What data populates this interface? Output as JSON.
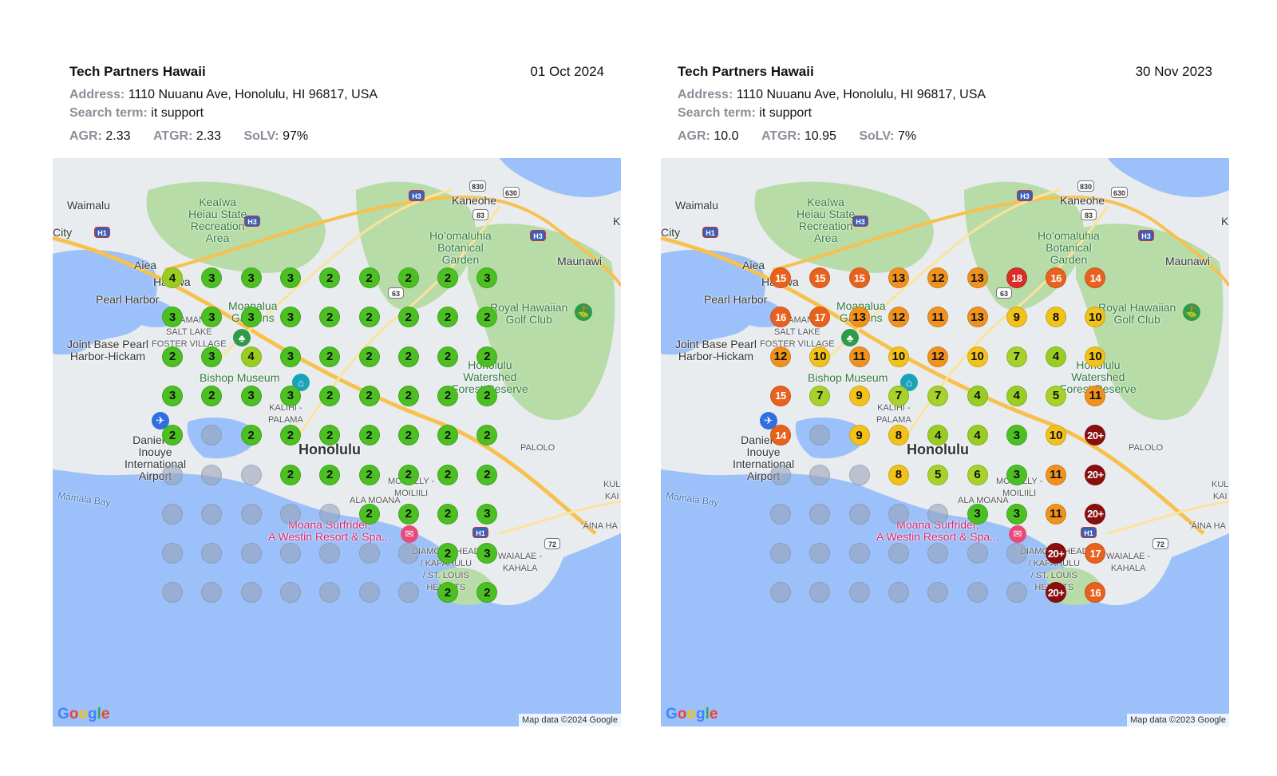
{
  "panels": [
    {
      "business": "Tech Partners Hawaii",
      "date": "01 Oct 2024",
      "address_label": "Address:",
      "address": "1110 Nuuanu Ave, Honolulu, HI 96817, USA",
      "search_label": "Search term:",
      "search_term": "it support",
      "agr_label": "AGR:",
      "agr": "2.33",
      "atgr_label": "ATGR:",
      "atgr": "2.33",
      "solv_label": "SoLV:",
      "solv": "97%",
      "map_attribution": "Map data ©2024 Google",
      "grid": [
        [
          "4",
          "3",
          "3",
          "3",
          "2",
          "2",
          "2",
          "2",
          "3"
        ],
        [
          "3",
          "3",
          "3",
          "3",
          "2",
          "2",
          "2",
          "2",
          "2"
        ],
        [
          "2",
          "3",
          "4",
          "3",
          "2",
          "2",
          "2",
          "2",
          "2"
        ],
        [
          "3",
          "2",
          "3",
          "3",
          "2",
          "2",
          "2",
          "2",
          "2"
        ],
        [
          "2",
          "",
          "2",
          "2",
          "2",
          "2",
          "2",
          "2",
          "2"
        ],
        [
          "",
          "",
          "",
          "2",
          "2",
          "2",
          "2",
          "2",
          "2"
        ],
        [
          "",
          "",
          "",
          "",
          "",
          "2",
          "2",
          "2",
          "3"
        ],
        [
          "",
          "",
          "",
          "",
          "",
          "",
          "",
          "2",
          "3"
        ],
        [
          "",
          "",
          "",
          "",
          "",
          "",
          "",
          "2",
          "2"
        ]
      ]
    },
    {
      "business": "Tech Partners Hawaii",
      "date": "30 Nov 2023",
      "address_label": "Address:",
      "address": "1110 Nuuanu Ave, Honolulu, HI 96817, USA",
      "search_label": "Search term:",
      "search_term": "it support",
      "agr_label": "AGR:",
      "agr": "10.0",
      "atgr_label": "ATGR:",
      "atgr": "10.95",
      "solv_label": "SoLV:",
      "solv": "7%",
      "map_attribution": "Map data ©2023 Google",
      "grid": [
        [
          "15",
          "15",
          "15",
          "13",
          "12",
          "13",
          "18",
          "16",
          "14"
        ],
        [
          "16",
          "17",
          "13",
          "12",
          "11",
          "13",
          "9",
          "8",
          "10"
        ],
        [
          "12",
          "10",
          "11",
          "10",
          "12",
          "10",
          "7",
          "4",
          "10"
        ],
        [
          "15",
          "7",
          "9",
          "7",
          "7",
          "4",
          "4",
          "5",
          "11"
        ],
        [
          "14",
          "",
          "9",
          "8",
          "4",
          "4",
          "3",
          "10",
          "20+"
        ],
        [
          "",
          "",
          "",
          "8",
          "5",
          "6",
          "3",
          "11",
          "20+"
        ],
        [
          "",
          "",
          "",
          "",
          "",
          "3",
          "3",
          "11",
          "20+"
        ],
        [
          "",
          "",
          "",
          "",
          "",
          "",
          "",
          "20+",
          "17"
        ],
        [
          "",
          "",
          "",
          "",
          "",
          "",
          "",
          "20+",
          "16"
        ]
      ]
    }
  ],
  "map_labels": {
    "waimalu": "Waimalu",
    "keaiwa": "Keaīwa\nHeiau State\nRecreation\nArea",
    "kaneohe": "Kaneohe",
    "city": "City",
    "hoomaluhia": "Hoʻomaluhia\nBotanical\nGarden",
    "maunawili": "Maunawi",
    "aiea": "Aiea",
    "halawa": "Halawa",
    "pearl_harbor": "Pearl Harbor",
    "moanalua": "Moanalua\nGardens",
    "royal_hawaiian": "Royal Hawaiian\nGolf Club",
    "alian": "ALIAMANU\nSALT LAKE\nFOSTER VILLAGE",
    "jbphh": "Joint Base Pearl\nHarbor-Hickam",
    "bishop": "Bishop Museum",
    "watershed": "Honolulu\nWatershed\nForest Reserve",
    "kalihi": "KALIHI -\nPALAMA",
    "airport": "Daniel K.\nInouye\nInternational\nAirport",
    "honolulu": "Honolulu",
    "palolo": "PALOLO",
    "mamala": "Māmala Bay",
    "moiliili": "MCCULLY -\nMOILIILI",
    "ala_moana": "ALA MOANA",
    "moana": "Moana Surfrider,\nA Westin Resort & Spa...",
    "aina_haina": "ʻĀINA HA",
    "diamond": "DIAMOND HEAD\n/ KAPAHULU\n/ ST. LOUIS\nHEIGHTS",
    "kahala": "WAIALAE -\nKAHALA",
    "kuli": "KUL\nKAI",
    "k_edge": "K",
    "shield_h3": "H3",
    "shield_h1": "H1",
    "rt_830": "830",
    "rt_630": "630",
    "rt_83": "83",
    "rt_63": "63",
    "rt_72": "72"
  },
  "google_logo": [
    "G",
    "o",
    "o",
    "g",
    "l",
    "e"
  ],
  "colors": {
    "rank_1_3": "#4cc022",
    "rank_4": "#9acd22",
    "rank_5_7": "#a6d22a",
    "rank_8_10": "#f2c21a",
    "rank_11_13": "#f0921c",
    "rank_14_17": "#e8621e",
    "rank_18_19": "#d82e28",
    "rank_20_plus": "#8a0e0e",
    "water": "#9cc0f9",
    "land": "#e9ecef",
    "park": "#b7dca8"
  }
}
